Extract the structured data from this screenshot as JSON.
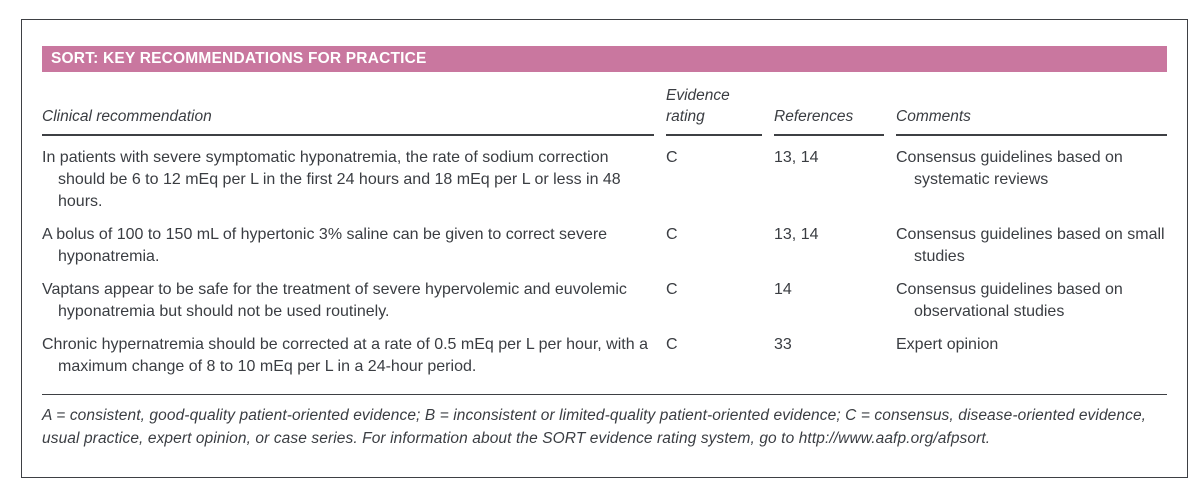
{
  "table": {
    "title": "SORT: KEY RECOMMENDATIONS FOR PRACTICE",
    "columns": {
      "recommendation": "Clinical recommendation",
      "evidence_rating": "Evidence rating",
      "references": "References",
      "comments": "Comments"
    },
    "rows": [
      {
        "recommendation": "In patients with severe symptomatic hyponatremia, the rate of sodium correction should be 6 to 12 mEq per L in the first 24 hours and 18 mEq per L or less in 48 hours.",
        "evidence_rating": "C",
        "references": "13, 14",
        "comments": "Consensus guidelines based on systematic reviews"
      },
      {
        "recommendation": "A bolus of 100 to 150 mL of hypertonic 3% saline can be given to correct severe hyponatremia.",
        "evidence_rating": "C",
        "references": "13, 14",
        "comments": "Consensus guidelines based on small studies"
      },
      {
        "recommendation": "Vaptans appear to be safe for the treatment of severe hypervolemic and euvolemic hyponatremia but should not be used routinely.",
        "evidence_rating": "C",
        "references": "14",
        "comments": "Consensus guidelines based on observational studies"
      },
      {
        "recommendation": "Chronic hypernatremia should be corrected at a rate of 0.5 mEq per L per hour, with a maximum change of 8 to 10 mEq per L in a 24-hour period.",
        "evidence_rating": "C",
        "references": "33",
        "comments": "Expert opinion"
      }
    ],
    "footnote": "A = consistent, good-quality patient-oriented evidence; B = inconsistent or limited-quality patient-oriented evidence; C = consensus, disease-oriented evidence, usual practice, expert opinion, or case series. For information about the SORT evidence rating system, go to http://www.aafp.org/afpsort."
  },
  "colors": {
    "header_bar": "#c9779f",
    "text": "#3a3d42",
    "rule": "#3e4044"
  }
}
